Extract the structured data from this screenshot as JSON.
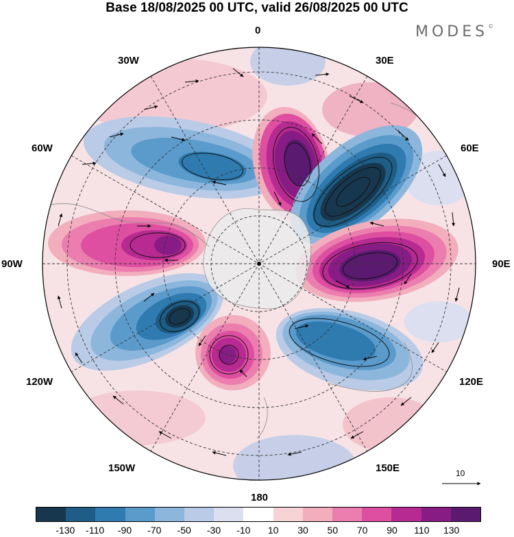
{
  "title": "Base 18/08/2025 00 UTC, valid 26/08/2025 00 UTC",
  "brand": "MODES",
  "brand_mark": "©",
  "longitude_labels": {
    "top": "0",
    "top_left": "30W",
    "top_right": "30E",
    "upper_left": "60W",
    "upper_right": "60E",
    "left": "90W",
    "right": "90E",
    "lower_left": "120W",
    "lower_right": "120E",
    "bottom_left": "150W",
    "bottom_right": "150E",
    "bottom": "180"
  },
  "reference_vector": {
    "label": "10"
  },
  "colorbar": {
    "colors": [
      "#17374f",
      "#1d5d86",
      "#2f7bb0",
      "#5a9bcc",
      "#8db6dd",
      "#b9cbe6",
      "#dcdff0",
      "#ffffff",
      "#f7d3d5",
      "#f2aebd",
      "#eb7eae",
      "#de4fa1",
      "#b72a92",
      "#871c84",
      "#5a1a70"
    ],
    "tick_labels": [
      "-130",
      "-110",
      "-90",
      "-70",
      "-50",
      "-30",
      "-10",
      "10",
      "30",
      "50",
      "70",
      "90",
      "110",
      "130"
    ]
  },
  "icons": {
    "pole": "pole-dot-icon"
  }
}
